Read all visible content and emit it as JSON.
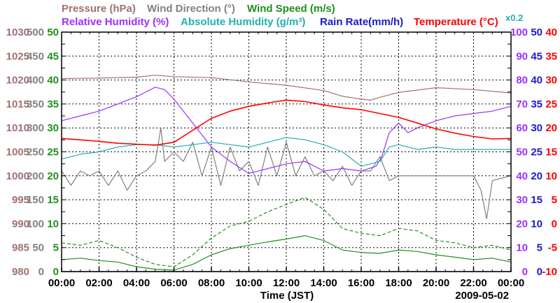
{
  "title_rows": {
    "row1": [
      {
        "text": "Pressure (hPa)",
        "color": "#a07070"
      },
      {
        "text": "Wind Direction (°)",
        "color": "#808080"
      },
      {
        "text": "Wind Speed (m/s)",
        "color": "#1f8f1f"
      }
    ],
    "row2": [
      {
        "text": "Relative Humidity (%)",
        "color": "#9b30ff"
      },
      {
        "text": "Absolute Humidity (g/m³)",
        "color": "#20b0b0"
      },
      {
        "text": "Rain Rate(mm/h)",
        "color": "#1a1acd"
      },
      {
        "text": "Temperature (°C)",
        "color": "#ff0000"
      }
    ],
    "scale_note": {
      "text": "x0.2",
      "color": "#20b0b0"
    }
  },
  "xlabel": "Time (JST)",
  "date": "2009-05-02",
  "chart_data": {
    "type": "line",
    "x_ticks": [
      "00:00",
      "02:00",
      "04:00",
      "06:00",
      "08:00",
      "10:00",
      "12:00",
      "14:00",
      "16:00",
      "18:00",
      "20:00",
      "22:00",
      "00:00"
    ],
    "xlim_hours": [
      0,
      24
    ],
    "grid": true,
    "left_axes": [
      {
        "name": "Pressure (hPa)",
        "color": "#a07070",
        "ticks": [
          980,
          985,
          990,
          995,
          1000,
          1005,
          1010,
          1015,
          1020,
          1025,
          1030
        ],
        "ylim": [
          980,
          1030
        ]
      },
      {
        "name": "Wind Direction (°)",
        "color": "#808080",
        "ticks": [
          0,
          50,
          100,
          150,
          200,
          250,
          300,
          350,
          400,
          450,
          500
        ],
        "ylim": [
          0,
          500
        ]
      },
      {
        "name": "Wind Speed (m/s)",
        "color": "#1f8f1f",
        "ticks": [
          0,
          5,
          10,
          15,
          20,
          25,
          30,
          35,
          40,
          45,
          50
        ],
        "ylim": [
          0,
          50
        ]
      }
    ],
    "right_axes": [
      {
        "name": "Relative Humidity (%)",
        "color": "#9b30ff",
        "ticks": [
          0,
          10,
          20,
          30,
          40,
          50,
          60,
          70,
          80,
          90,
          100
        ],
        "ylim": [
          0,
          100
        ]
      },
      {
        "name": "Rain Rate(mm/h)",
        "color": "#1a1acd",
        "ticks": [
          0,
          5,
          10,
          15,
          20,
          25,
          30,
          35,
          40,
          45,
          50
        ],
        "ylim": [
          0,
          50
        ]
      },
      {
        "name": "Temperature (°C)",
        "color": "#ff0000",
        "ticks": [
          -10,
          -5,
          0,
          5,
          10,
          15,
          20,
          25,
          30,
          35,
          40
        ],
        "ylim": [
          -10,
          40
        ]
      }
    ],
    "series": [
      {
        "name": "Pressure (hPa)",
        "color": "#a07070",
        "axis": "pressure",
        "x": [
          0,
          2,
          4,
          5,
          6,
          8,
          10,
          12,
          14,
          15,
          16,
          16.5,
          17,
          18,
          20,
          22,
          24
        ],
        "y": [
          1020.3,
          1020.4,
          1020.6,
          1021.0,
          1020.7,
          1020.5,
          1019.6,
          1018.9,
          1017.8,
          1016.6,
          1016.0,
          1015.8,
          1016.4,
          1017.4,
          1018.4,
          1018.0,
          1017.3
        ]
      },
      {
        "name": "Wind Direction (°)",
        "color": "#808080",
        "axis": "wind_direction",
        "x": [
          0,
          0.5,
          1,
          1.5,
          2,
          2.5,
          3,
          3.5,
          4,
          4.5,
          5,
          5.3,
          5.5,
          6,
          6.5,
          7,
          7.5,
          8,
          8.5,
          9,
          9.5,
          10,
          10.5,
          11,
          11.5,
          12,
          12.5,
          13,
          13.5,
          14,
          14.5,
          15,
          15.5,
          16,
          16.5,
          17,
          17.5,
          18,
          18.5,
          19,
          20,
          21,
          22,
          22.4,
          22.7,
          23,
          24
        ],
        "y": [
          210,
          180,
          210,
          200,
          210,
          180,
          210,
          170,
          200,
          210,
          230,
          300,
          230,
          250,
          230,
          270,
          200,
          260,
          180,
          260,
          210,
          230,
          180,
          260,
          200,
          270,
          200,
          240,
          200,
          210,
          190,
          220,
          180,
          210,
          210,
          240,
          190,
          200,
          200,
          200,
          200,
          200,
          200,
          170,
          110,
          190,
          200
        ]
      },
      {
        "name": "Wind Speed (m/s)",
        "color": "#1f8f1f",
        "axis": "wind_speed",
        "x": [
          0,
          1,
          2,
          3,
          4,
          5,
          6,
          7,
          8,
          9,
          10,
          11,
          12,
          13,
          14,
          15,
          16,
          17,
          18,
          19,
          20,
          21,
          22,
          23,
          24
        ],
        "y": [
          2.5,
          2.8,
          2.3,
          2.0,
          1.0,
          0.5,
          0.3,
          1.5,
          3.5,
          4.8,
          5.5,
          6.2,
          6.8,
          7.5,
          6.5,
          4.5,
          4.0,
          3.8,
          4.5,
          4.2,
          3.5,
          3.0,
          2.5,
          2.8,
          2.0
        ]
      },
      {
        "name": "Wind Speed gust (m/s)",
        "color": "#1f8f1f",
        "axis": "wind_speed",
        "dashed": true,
        "x": [
          0,
          1,
          2,
          3,
          4,
          5,
          6,
          7,
          8,
          9,
          10,
          11,
          12,
          13,
          14,
          15,
          16,
          17,
          18,
          19,
          20,
          21,
          22,
          23,
          24
        ],
        "y": [
          6.0,
          5.5,
          6.5,
          5.0,
          3.0,
          1.5,
          1.0,
          3.5,
          7.0,
          9.5,
          10.5,
          12.5,
          14.0,
          15.5,
          13.0,
          9.0,
          8.0,
          7.5,
          9.0,
          8.5,
          6.5,
          6.0,
          5.0,
          5.5,
          4.5
        ]
      },
      {
        "name": "Relative Humidity (%)",
        "color": "#9b30ff",
        "axis": "humidity",
        "x": [
          0,
          1,
          2,
          3,
          4,
          5,
          5.5,
          6,
          7,
          8,
          9,
          10,
          11,
          12,
          13,
          14,
          15,
          16,
          16.8,
          17.1,
          17.5,
          18,
          18.5,
          19,
          20,
          21,
          22,
          23,
          24
        ],
        "y": [
          63,
          65,
          67,
          70,
          73,
          77,
          76,
          72,
          62,
          52,
          46,
          41,
          43,
          45,
          46,
          42,
          43,
          42,
          44,
          48,
          58,
          62,
          58,
          60,
          63,
          65,
          66,
          67,
          69
        ]
      },
      {
        "name": "Absolute Humidity (g/m³)",
        "color": "#20b0b0",
        "axis": "humidity",
        "x": [
          0,
          1,
          2,
          3,
          4,
          5,
          6,
          7,
          8,
          9,
          10,
          11,
          12,
          13,
          14,
          15,
          16,
          17,
          17.5,
          18,
          19,
          20,
          21,
          22,
          23,
          24
        ],
        "y": [
          47,
          49,
          50,
          52,
          53,
          53,
          52,
          53,
          54,
          53,
          52,
          54,
          56,
          55,
          53,
          50,
          44,
          46,
          52,
          53,
          51,
          52,
          51,
          51,
          51,
          51
        ]
      },
      {
        "name": "Rain Rate(mm/h)",
        "color": "#1a1acd",
        "axis": "rain",
        "x": [
          0,
          24
        ],
        "y": [
          0,
          0
        ]
      },
      {
        "name": "Temperature (°C)",
        "color": "#ff0000",
        "axis": "temperature",
        "x": [
          0,
          1,
          2,
          3,
          4,
          5,
          6,
          7,
          8,
          9,
          10,
          11,
          12,
          13,
          14,
          15,
          16,
          17,
          18,
          19,
          20,
          21,
          22,
          23,
          24
        ],
        "y": [
          17.8,
          17.5,
          17.2,
          16.8,
          16.6,
          16.4,
          17.0,
          19.5,
          22.0,
          23.5,
          24.5,
          25.2,
          25.8,
          25.5,
          24.8,
          24.2,
          23.8,
          23.0,
          22.2,
          21.0,
          19.8,
          18.9,
          18.2,
          17.7,
          17.8
        ]
      }
    ]
  }
}
